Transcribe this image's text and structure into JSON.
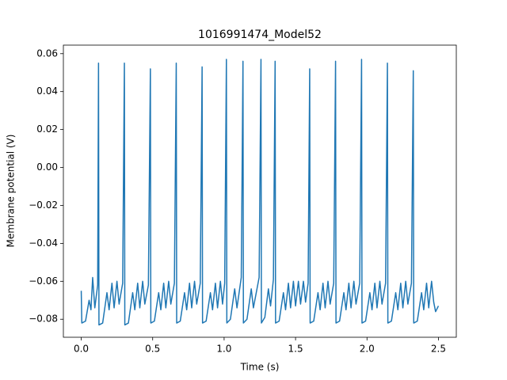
{
  "chart_data": {
    "type": "line",
    "title": "1016991474_Model52",
    "x_label": "Time (s)",
    "y_label": "Membrane potential (V)",
    "xlim": [
      -0.125,
      2.625
    ],
    "ylim": [
      -0.0895,
      0.0645
    ],
    "xticks": [
      {
        "value": 0,
        "label": "0.0"
      },
      0.5,
      {
        "value": 1,
        "label": "1.0"
      },
      1.5,
      {
        "value": 2,
        "label": "2.0"
      },
      2.5
    ],
    "yticks": [
      {
        "value": -0.08,
        "label": "−0.08"
      },
      {
        "value": -0.06,
        "label": "−0.06"
      },
      {
        "value": -0.04,
        "label": "−0.04"
      },
      {
        "value": -0.02,
        "label": "−0.02"
      },
      {
        "value": 0,
        "label": "0.00"
      },
      0.02,
      0.04,
      0.06
    ],
    "color": "#1f77b4",
    "x": [
      0.0,
      0.004,
      0.03,
      0.055,
      0.068,
      0.08,
      0.095,
      0.115,
      0.121,
      0.124,
      0.15,
      0.18,
      0.195,
      0.215,
      0.23,
      0.25,
      0.265,
      0.29,
      0.302,
      0.305,
      0.33,
      0.36,
      0.375,
      0.395,
      0.41,
      0.43,
      0.445,
      0.47,
      0.484,
      0.487,
      0.512,
      0.542,
      0.557,
      0.577,
      0.592,
      0.612,
      0.627,
      0.652,
      0.665,
      0.668,
      0.693,
      0.723,
      0.738,
      0.758,
      0.773,
      0.793,
      0.808,
      0.833,
      0.846,
      0.849,
      0.874,
      0.904,
      0.919,
      0.939,
      0.954,
      0.974,
      0.989,
      1.004,
      1.016,
      1.019,
      1.044,
      1.074,
      1.09,
      1.12,
      1.132,
      1.135,
      1.16,
      1.19,
      1.205,
      1.245,
      1.258,
      1.261,
      1.285,
      1.31,
      1.325,
      1.345,
      1.357,
      1.36,
      1.385,
      1.415,
      1.43,
      1.45,
      1.465,
      1.485,
      1.5,
      1.52,
      1.535,
      1.555,
      1.57,
      1.588,
      1.599,
      1.602,
      1.627,
      1.657,
      1.672,
      1.692,
      1.707,
      1.727,
      1.742,
      1.767,
      1.78,
      1.783,
      1.808,
      1.838,
      1.853,
      1.873,
      1.888,
      1.908,
      1.923,
      1.949,
      1.962,
      1.965,
      1.99,
      2.02,
      2.035,
      2.055,
      2.07,
      2.09,
      2.105,
      2.13,
      2.143,
      2.146,
      2.171,
      2.201,
      2.216,
      2.236,
      2.251,
      2.271,
      2.286,
      2.311,
      2.324,
      2.327,
      2.352,
      2.382,
      2.397,
      2.417,
      2.432,
      2.452,
      2.467,
      2.48,
      2.5
    ],
    "values": [
      -0.065,
      -0.082,
      -0.081,
      -0.07,
      -0.075,
      -0.058,
      -0.074,
      -0.062,
      0.055,
      -0.083,
      -0.082,
      -0.066,
      -0.075,
      -0.061,
      -0.074,
      -0.06,
      -0.072,
      -0.061,
      0.055,
      -0.083,
      -0.082,
      -0.066,
      -0.075,
      -0.061,
      -0.074,
      -0.06,
      -0.072,
      -0.062,
      0.052,
      -0.082,
      -0.081,
      -0.066,
      -0.075,
      -0.061,
      -0.074,
      -0.06,
      -0.072,
      -0.061,
      0.055,
      -0.082,
      -0.081,
      -0.066,
      -0.075,
      -0.061,
      -0.074,
      -0.06,
      -0.072,
      -0.061,
      0.053,
      -0.082,
      -0.081,
      -0.066,
      -0.075,
      -0.061,
      -0.074,
      -0.06,
      -0.072,
      -0.061,
      0.057,
      -0.082,
      -0.08,
      -0.064,
      -0.074,
      -0.058,
      0.056,
      -0.082,
      -0.08,
      -0.064,
      -0.074,
      -0.058,
      0.057,
      -0.082,
      -0.079,
      -0.064,
      -0.073,
      -0.059,
      0.056,
      -0.082,
      -0.081,
      -0.066,
      -0.075,
      -0.061,
      -0.074,
      -0.06,
      -0.073,
      -0.06,
      -0.072,
      -0.06,
      -0.071,
      -0.061,
      0.052,
      -0.082,
      -0.081,
      -0.066,
      -0.075,
      -0.061,
      -0.074,
      -0.06,
      -0.072,
      -0.061,
      0.056,
      -0.082,
      -0.081,
      -0.066,
      -0.075,
      -0.061,
      -0.074,
      -0.06,
      -0.072,
      -0.061,
      0.057,
      -0.082,
      -0.081,
      -0.066,
      -0.075,
      -0.061,
      -0.074,
      -0.06,
      -0.072,
      -0.061,
      0.055,
      -0.082,
      -0.081,
      -0.066,
      -0.075,
      -0.061,
      -0.074,
      -0.06,
      -0.072,
      -0.061,
      0.051,
      -0.082,
      -0.081,
      -0.066,
      -0.075,
      -0.061,
      -0.074,
      -0.06,
      -0.071,
      -0.076,
      -0.073
    ]
  }
}
